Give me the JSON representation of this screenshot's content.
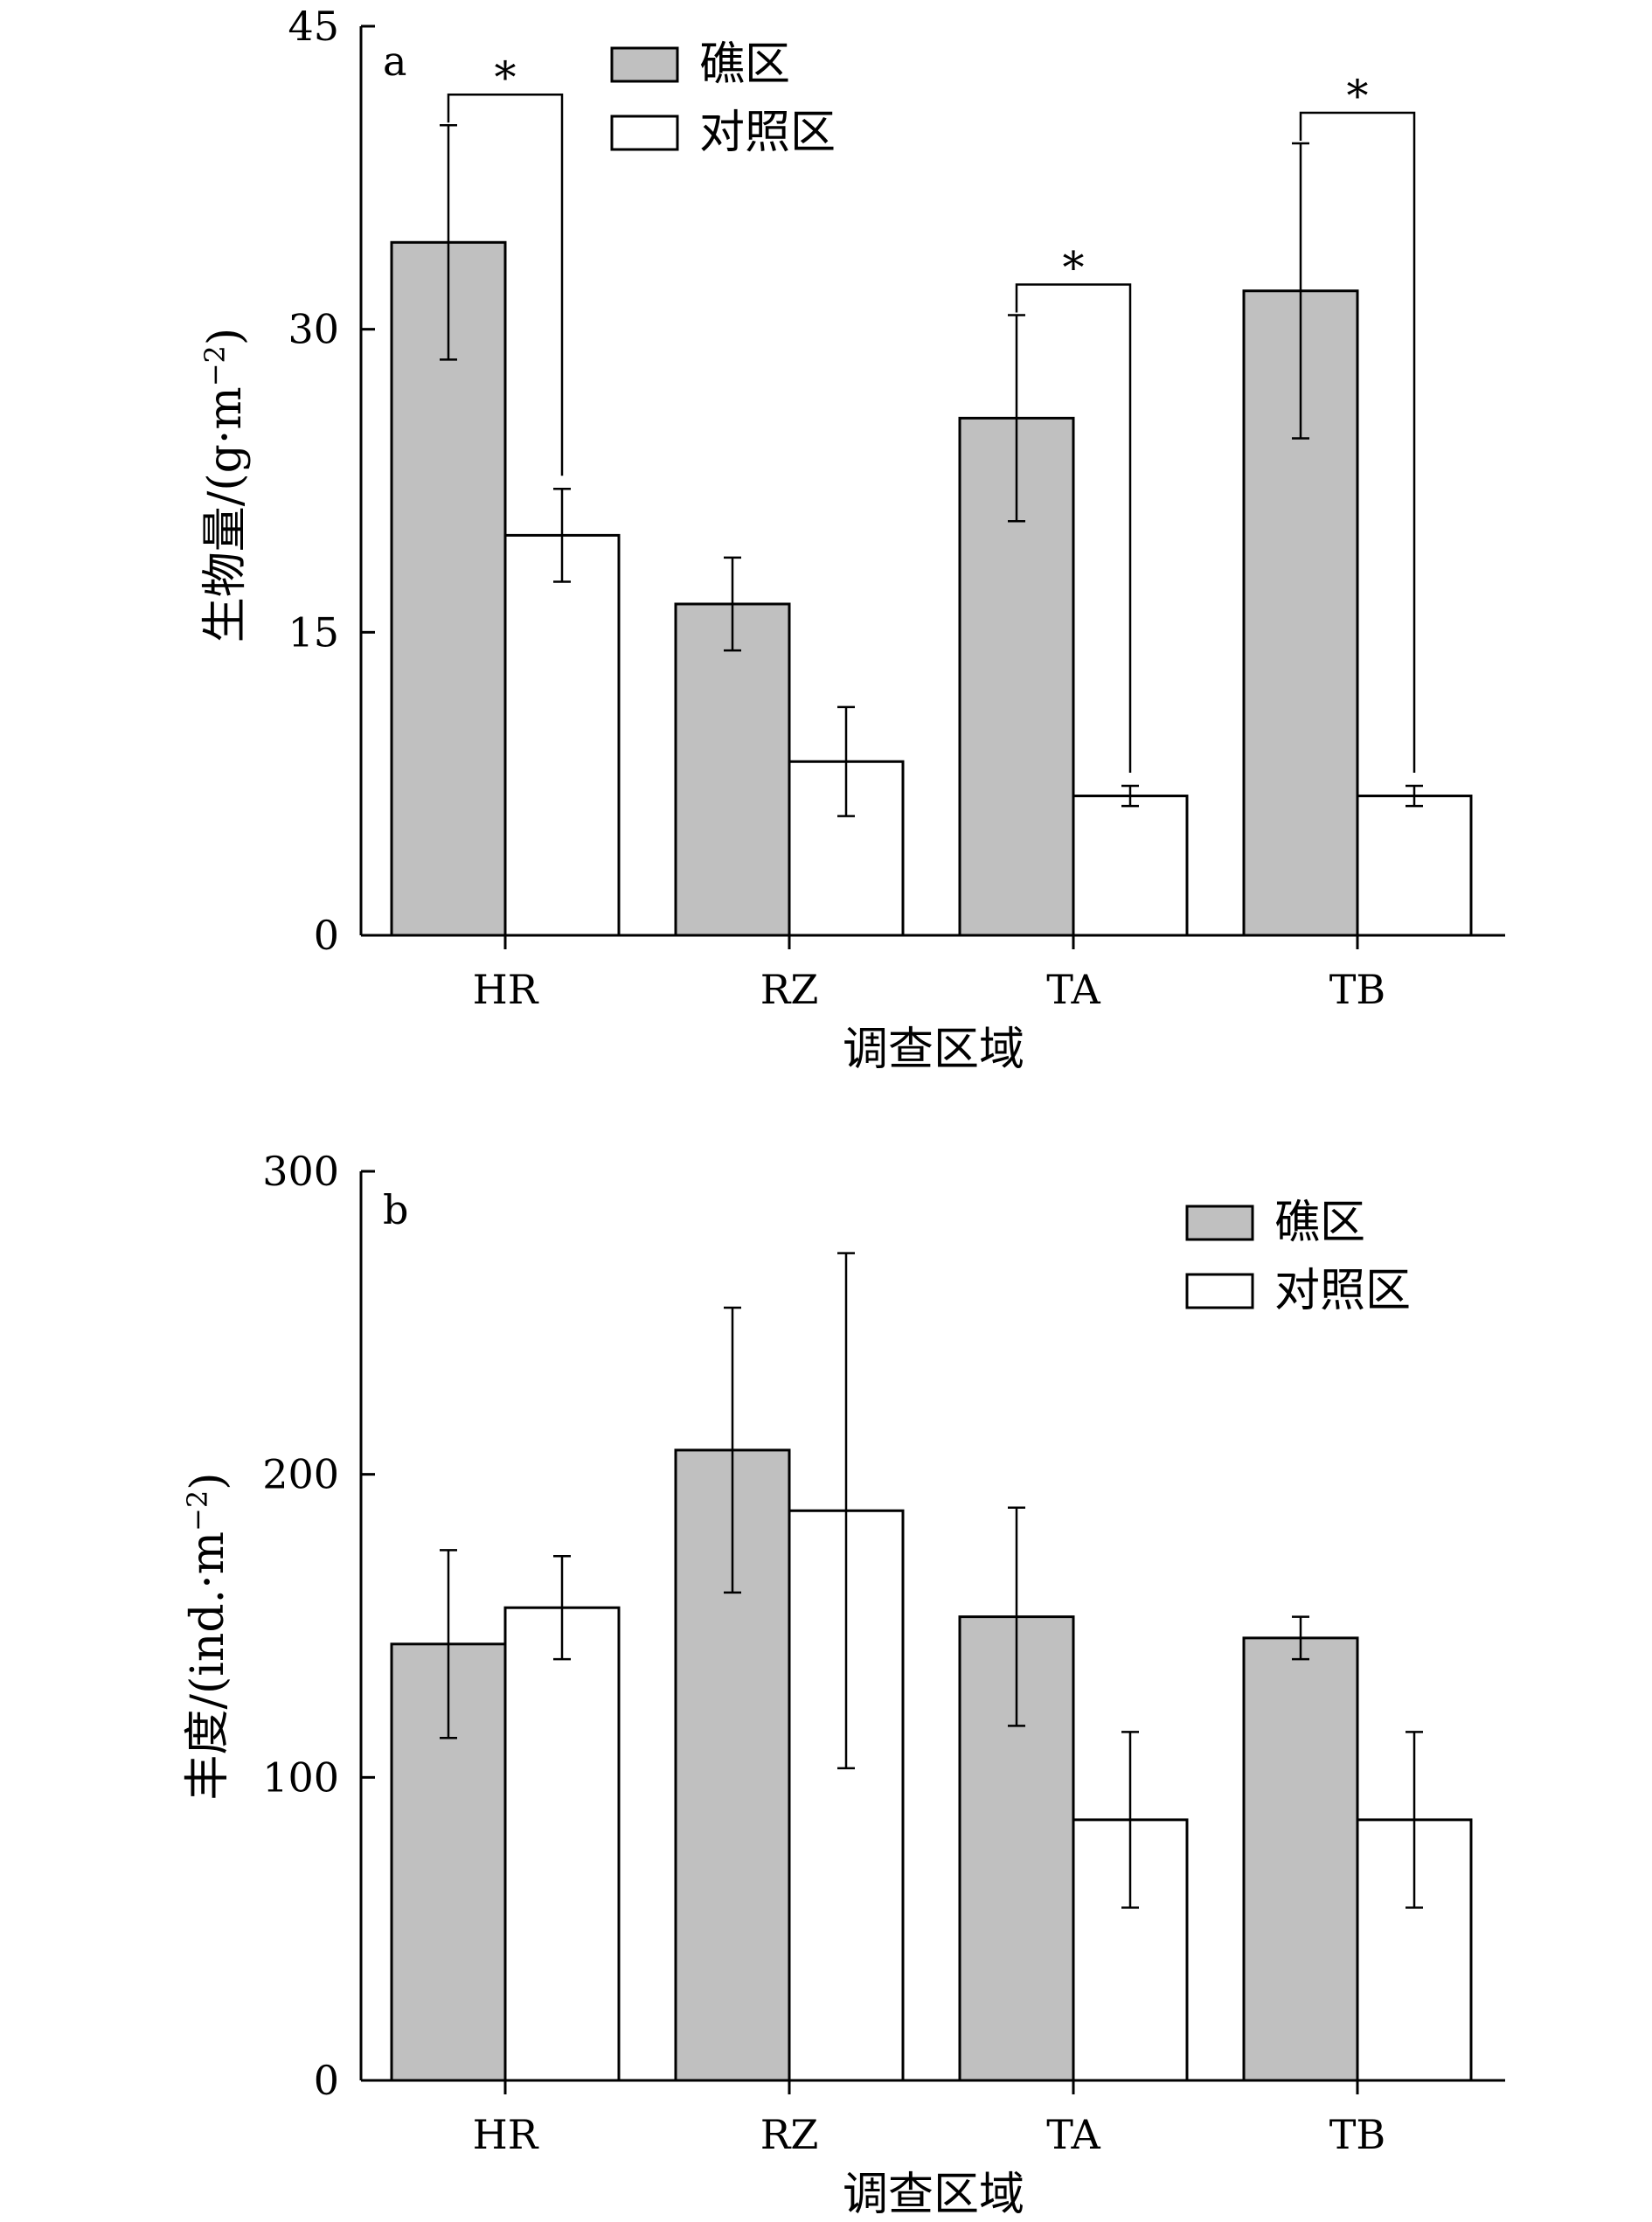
{
  "colors": {
    "reef": "#c0c0c0",
    "control": "#ffffff",
    "axis": "#000000"
  },
  "chart_data": [
    {
      "type": "bar",
      "panel_label": "a",
      "categories": [
        "HR",
        "RZ",
        "TA",
        "TB"
      ],
      "series": [
        {
          "name": "礁区",
          "values": [
            34.3,
            16.4,
            25.6,
            31.9
          ],
          "errors": [
            5.8,
            2.3,
            5.1,
            7.3
          ]
        },
        {
          "name": "对照区",
          "values": [
            19.8,
            8.6,
            6.9,
            6.9
          ],
          "errors": [
            2.3,
            2.7,
            0.5,
            0.5
          ]
        }
      ],
      "significance": [
        {
          "category": "HR",
          "label": "*"
        },
        {
          "category": "TA",
          "label": "*"
        },
        {
          "category": "TB",
          "label": "*"
        }
      ],
      "xlabel": "调查区域",
      "ylabel": "生物量/(g·m",
      "ylabel_sup": "−2",
      "ylabel_end": ")",
      "ylim": [
        0,
        45
      ],
      "yticks": [
        0,
        15,
        30,
        45
      ],
      "legend_position": "top-center",
      "grid": false
    },
    {
      "type": "bar",
      "panel_label": "b",
      "categories": [
        "HR",
        "RZ",
        "TA",
        "TB"
      ],
      "series": [
        {
          "name": "礁区",
          "values": [
            144,
            208,
            153,
            146
          ],
          "errors": [
            31,
            47,
            36,
            7
          ]
        },
        {
          "name": "对照区",
          "values": [
            156,
            188,
            86,
            86
          ],
          "errors": [
            17,
            85,
            29,
            29
          ]
        }
      ],
      "xlabel": "调查区域",
      "ylabel": "丰度/(ind.·m",
      "ylabel_sup": "−2",
      "ylabel_end": ")",
      "ylim": [
        0,
        300
      ],
      "yticks": [
        0,
        100,
        200,
        300
      ],
      "legend_position": "top-right",
      "grid": false
    }
  ]
}
